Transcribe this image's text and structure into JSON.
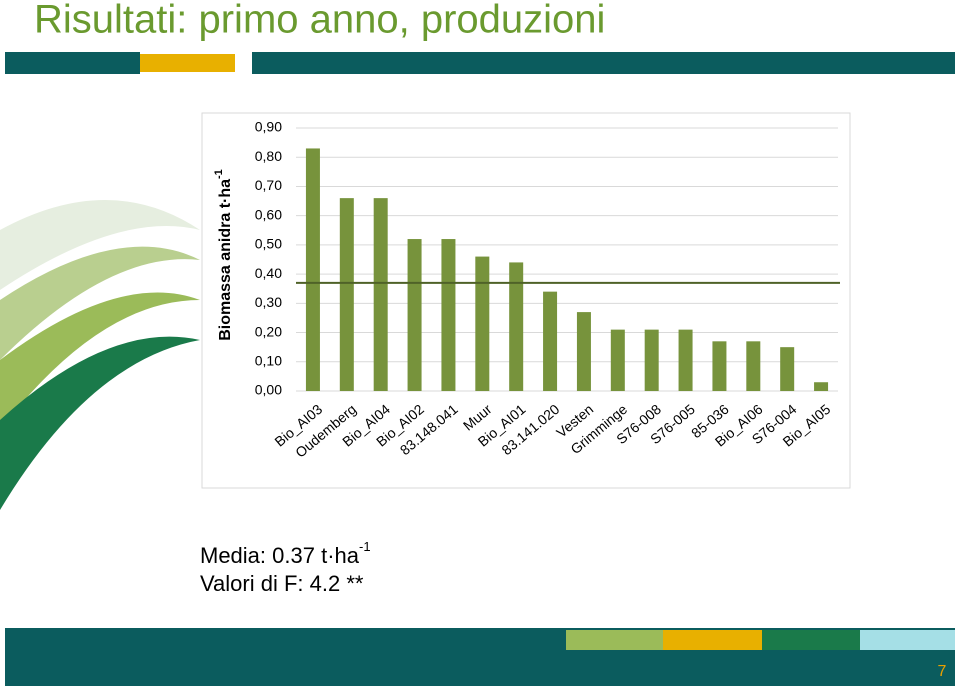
{
  "slide": {
    "title": "Risultati: primo anno, produzioni",
    "mean_text": "Media: 0.37 t·ha",
    "mean_text_sup": "-1",
    "f_text": "Valori di F: 4.2 **",
    "page_number": "7"
  },
  "chart_data": {
    "type": "bar",
    "y_label": "Biomassa anidra t·ha",
    "y_label_sup": "-1",
    "categories": [
      "Bio_AI03",
      "Oudemberg",
      "Bio_AI04",
      "Bio_AI02",
      "83.148.041",
      "Muur",
      "Bio_AI01",
      "83.141.020",
      "Vesten",
      "Grimminge",
      "S76-008",
      "S76-005",
      "85-036",
      "Bio_AI06",
      "S76-004",
      "Bio_AI05"
    ],
    "values": [
      0.83,
      0.66,
      0.66,
      0.52,
      0.52,
      0.46,
      0.44,
      0.34,
      0.27,
      0.21,
      0.21,
      0.21,
      0.17,
      0.17,
      0.15,
      0.03
    ],
    "color": "#77933c",
    "mean_line": 0.37,
    "mean_line_color": "#4f6228",
    "ylim": [
      0,
      0.9
    ],
    "yticks": [
      {
        "value": 0,
        "label": "0,00"
      },
      {
        "value": 0.1,
        "label": "0,10"
      },
      {
        "value": 0.2,
        "label": "0,20"
      },
      {
        "value": 0.3,
        "label": "0,30"
      },
      {
        "value": 0.4,
        "label": "0,40"
      },
      {
        "value": 0.5,
        "label": "0,50"
      },
      {
        "value": 0.6,
        "label": "0,60"
      },
      {
        "value": 0.7,
        "label": "0,70"
      },
      {
        "value": 0.8,
        "label": "0,80"
      },
      {
        "value": 0.9,
        "label": "0,90"
      }
    ],
    "grid": true
  }
}
